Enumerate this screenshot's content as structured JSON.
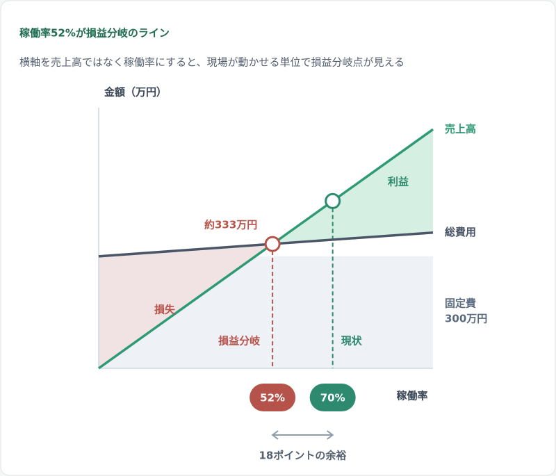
{
  "chart_data": {
    "type": "breakeven",
    "title": "稼働率52%が損益分岐のライン",
    "subtitle": "横軸を売上高ではなく稼働率にすると、現場が動かせる単位で損益分岐点が見える",
    "y_label": "金額（万円）",
    "x_label": "稼働率",
    "xlim": [
      0,
      100
    ],
    "ylim": [
      0,
      698
    ],
    "series": [
      {
        "name": "売上高",
        "color": "#2e9a74",
        "x": [
          0,
          100
        ],
        "values": [
          0,
          640
        ]
      },
      {
        "name": "総費用",
        "color": "#4a5568",
        "x": [
          0,
          100
        ],
        "values": [
          300,
          363.5
        ]
      }
    ],
    "fixed_cost": {
      "name": "固定費",
      "value": 300,
      "value_label": "300万円",
      "color": "#eef2f7"
    },
    "break_even": {
      "name": "損益分岐",
      "x": 52,
      "x_label": "52%",
      "value": 333,
      "value_label": "約333万円",
      "color": "#b5534a"
    },
    "current": {
      "name": "現状",
      "x": 70,
      "x_label": "70%",
      "value": 448,
      "color": "#2e8a6e"
    },
    "profit_label": "利益",
    "loss_label": "損失",
    "margin_label": "18ポイントの余裕"
  }
}
